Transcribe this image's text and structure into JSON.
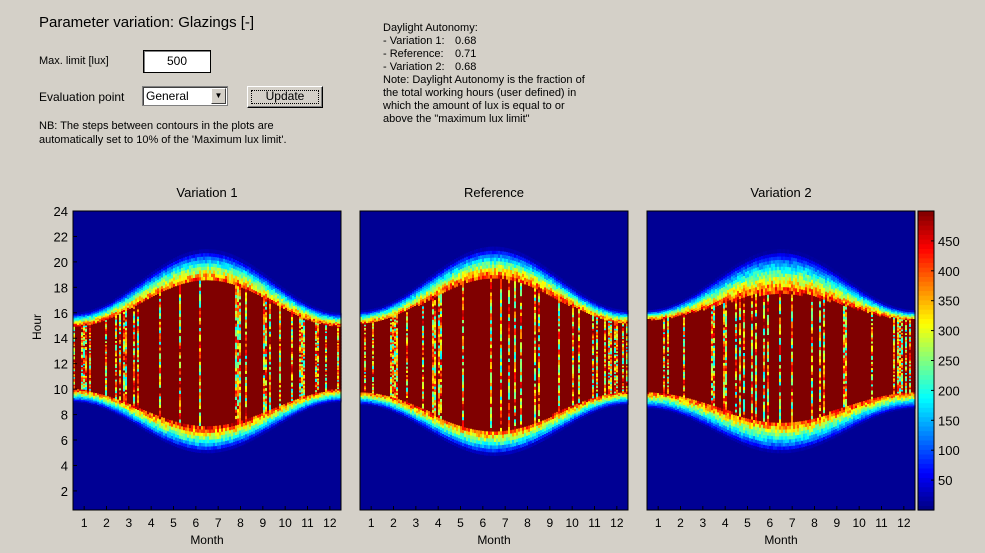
{
  "panel": {
    "title": "Parameter variation: Glazings [-]",
    "max_limit_label": "Max. limit [lux]",
    "max_limit_value": "500",
    "eval_point_label": "Evaluation point",
    "eval_point_value": "General",
    "update_label": "Update",
    "nb_line1": "NB: The steps between contours in the plots are",
    "nb_line2": "automatically set to 10% of the 'Maximum lux limit'."
  },
  "autonomy": {
    "heading": "Daylight Autonomy:",
    "rows": [
      {
        "label": "- Variation 1:",
        "value": "0.68"
      },
      {
        "label": "- Reference:",
        "value": "0.71"
      },
      {
        "label": "- Variation 2:",
        "value": "0.68"
      }
    ],
    "note_lines": [
      "Note: Daylight Autonomy is the fraction of",
      "the total working hours (user defined) in",
      "which the amount of lux is equal to or",
      "above the \"maximum lux limit\""
    ]
  },
  "colors": {
    "background": "#d4d0c8",
    "low": "#00008f",
    "high": "#800000"
  },
  "chart_data": [
    {
      "type": "heatmap",
      "title": "Variation 1",
      "xlabel": "Month",
      "ylabel": "Hour",
      "x_ticks": [
        1,
        2,
        3,
        4,
        5,
        6,
        7,
        8,
        9,
        10,
        11,
        12
      ],
      "y_ticks": [
        2,
        4,
        6,
        8,
        10,
        12,
        14,
        16,
        18,
        20,
        22,
        24
      ],
      "xlim": [
        0.5,
        12.5
      ],
      "ylim": [
        0.5,
        24
      ],
      "zlim": [
        0,
        500
      ],
      "autonomy": 0.68,
      "daylight_window": {
        "sunrise_winter": 9.0,
        "sunrise_summer": 5.0,
        "sunset_winter": 16.0,
        "sunset_summer": 21.0
      },
      "saturation_window": {
        "start_winter": 10.0,
        "start_summer": 7.0,
        "end_winter": 15.0,
        "end_summer": 18.5
      }
    },
    {
      "type": "heatmap",
      "title": "Reference",
      "xlabel": "Month",
      "ylabel": "",
      "x_ticks": [
        1,
        2,
        3,
        4,
        5,
        6,
        7,
        8,
        9,
        10,
        11,
        12
      ],
      "xlim": [
        0.5,
        12.5
      ],
      "ylim": [
        0.5,
        24
      ],
      "zlim": [
        0,
        500
      ],
      "autonomy": 0.71,
      "daylight_window": {
        "sunrise_winter": 8.8,
        "sunrise_summer": 4.8,
        "sunset_winter": 16.2,
        "sunset_summer": 21.2
      },
      "saturation_window": {
        "start_winter": 9.8,
        "start_summer": 6.8,
        "end_winter": 15.2,
        "end_summer": 18.8
      }
    },
    {
      "type": "heatmap",
      "title": "Variation 2",
      "xlabel": "Month",
      "ylabel": "",
      "x_ticks": [
        1,
        2,
        3,
        4,
        5,
        6,
        7,
        8,
        9,
        10,
        11,
        12
      ],
      "xlim": [
        0.5,
        12.5
      ],
      "ylim": [
        0.5,
        24
      ],
      "zlim": [
        0,
        500
      ],
      "autonomy": 0.68,
      "daylight_window": {
        "sunrise_winter": 8.5,
        "sunrise_summer": 5.0,
        "sunset_winter": 16.2,
        "sunset_summer": 21.0
      },
      "saturation_window": {
        "start_winter": 9.8,
        "start_summer": 7.5,
        "end_winter": 15.5,
        "end_summer": 17.6
      }
    }
  ],
  "colorbar": {
    "ticks": [
      50,
      100,
      150,
      200,
      250,
      300,
      350,
      400,
      450
    ],
    "zlim": [
      0,
      500
    ],
    "colormap": "jet"
  }
}
